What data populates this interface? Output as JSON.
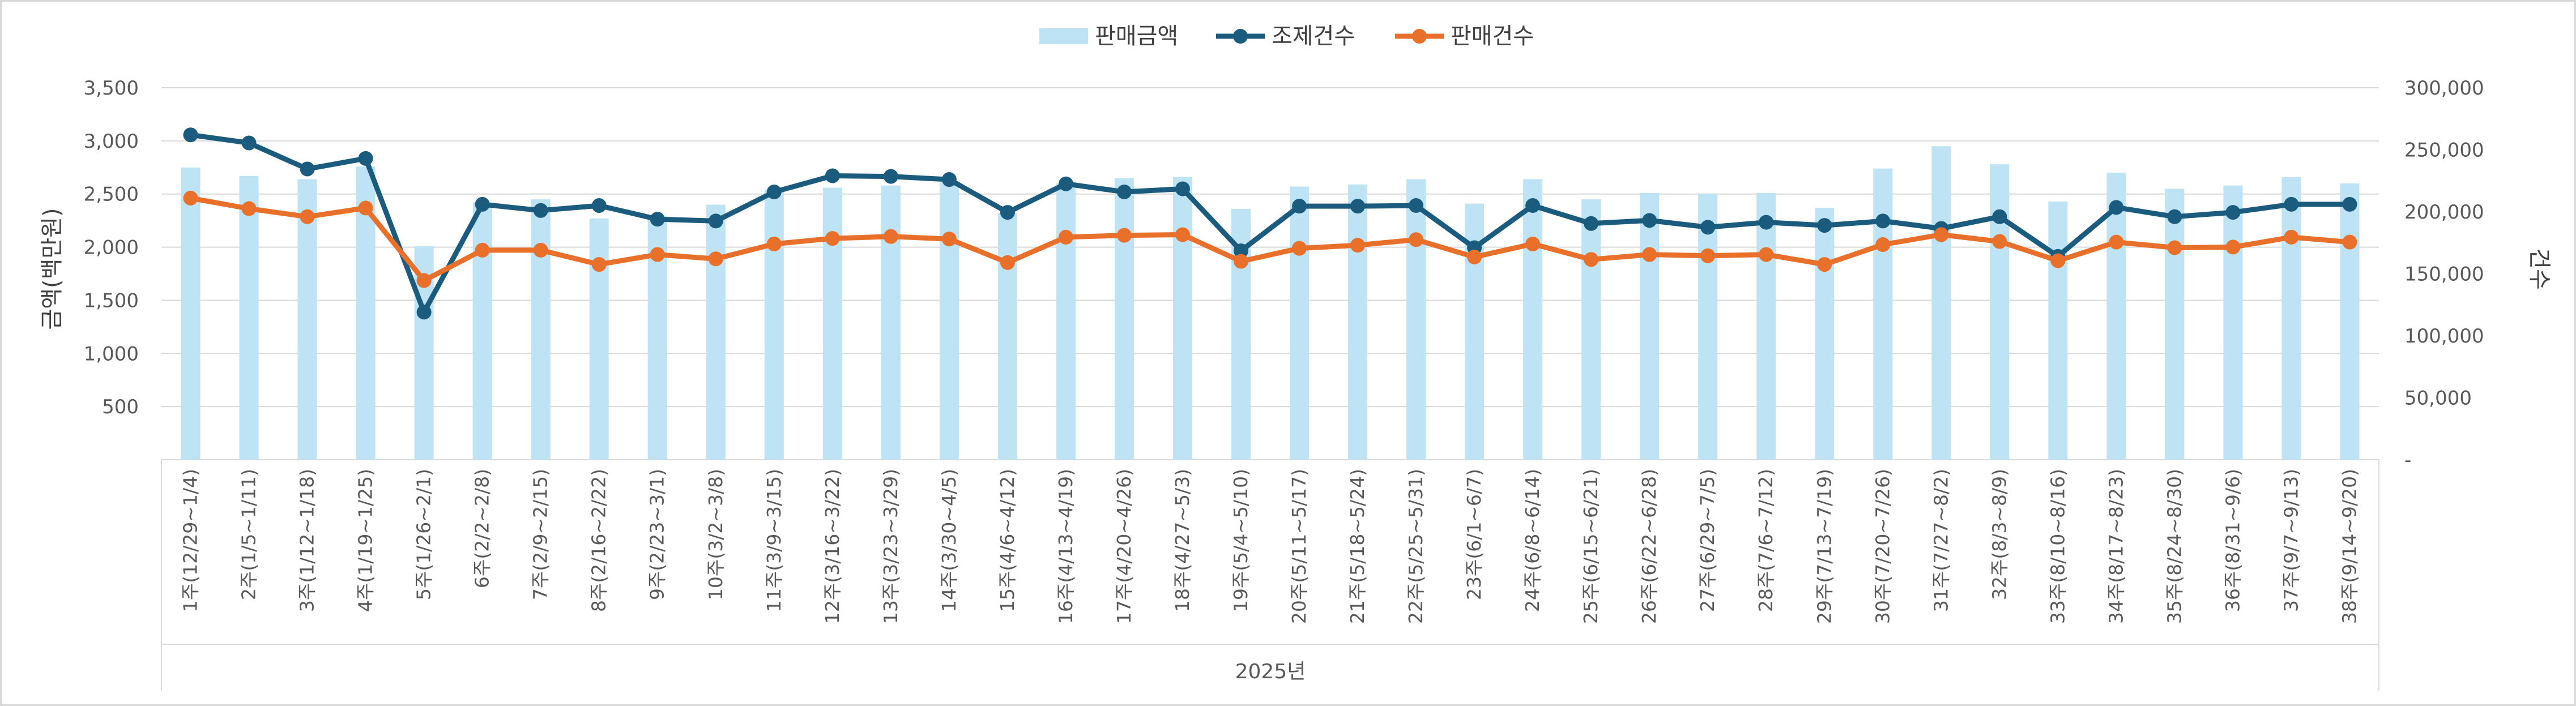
{
  "chart_data": {
    "type": "bar+line",
    "title": "",
    "legend": [
      "판매금액",
      "조제건수",
      "판매건수"
    ],
    "legend_position": "top",
    "ylabel_left": "금액(백만원)",
    "ylabel_right": "건수",
    "ylim_left": [
      0,
      3500
    ],
    "ylim_right": [
      0,
      300000
    ],
    "yticks_left": [
      "500",
      "1,000",
      "1,500",
      "2,000",
      "2,500",
      "3,000",
      "3,500"
    ],
    "yticks_right": [
      "-",
      "50,000",
      "100,000",
      "150,000",
      "200,000",
      "250,000",
      "300,000"
    ],
    "year_label": "2025년",
    "categories": [
      "1주(12/29~1/4)",
      "2주(1/5~1/11)",
      "3주(1/12~1/18)",
      "4주(1/19~1/25)",
      "5주(1/26~2/1)",
      "6주(2/2~2/8)",
      "7주(2/9~2/15)",
      "8주(2/16~2/22)",
      "9주(2/23~3/1)",
      "10주(3/2~3/8)",
      "11주(3/9~3/15)",
      "12주(3/16~3/22)",
      "13주(3/23~3/29)",
      "14주(3/30~4/5)",
      "15주(4/6~4/12)",
      "16주(4/13~4/19)",
      "17주(4/20~4/26)",
      "18주(4/27~5/3)",
      "19주(5/4~5/10)",
      "20주(5/11~5/17)",
      "21주(5/18~5/24)",
      "22주(5/25~5/31)",
      "23주(6/1~6/7)",
      "24주(6/8~6/14)",
      "25주(6/15~6/21)",
      "26주(6/22~6/28)",
      "27주(6/29~7/5)",
      "28주(7/6~7/12)",
      "29주(7/13~7/19)",
      "30주(7/20~7/26)",
      "31주(7/27~8/2)",
      "32주(8/3~8/9)",
      "33주(8/10~8/16)",
      "34주(8/17~8/23)",
      "35주(8/24~8/30)",
      "36주(8/31~9/6)",
      "37주(9/7~9/13)",
      "38주(9/14~9/20)"
    ],
    "series": [
      {
        "name": "판매금액",
        "type": "bar",
        "axis": "left",
        "color": "#BDE3F5",
        "values": [
          2750,
          2670,
          2640,
          2760,
          2010,
          2420,
          2450,
          2270,
          2290,
          2400,
          2540,
          2560,
          2580,
          2610,
          2320,
          2600,
          2650,
          2660,
          2360,
          2570,
          2590,
          2640,
          2410,
          2640,
          2450,
          2510,
          2500,
          2510,
          2370,
          2740,
          2950,
          2780,
          2430,
          2700,
          2550,
          2580,
          2660,
          2600
        ]
      },
      {
        "name": "조제건수",
        "type": "line",
        "axis": "right",
        "color": "#1B5C7E",
        "values": [
          262000,
          255500,
          234500,
          243000,
          119000,
          206000,
          201000,
          205000,
          194000,
          192500,
          216000,
          229000,
          228500,
          226000,
          199500,
          222500,
          216000,
          218500,
          168500,
          204500,
          204500,
          205000,
          171000,
          205000,
          190500,
          193000,
          187500,
          191500,
          189000,
          192500,
          186500,
          196000,
          164000,
          203500,
          196000,
          199500,
          206000,
          206000
        ]
      },
      {
        "name": "판매건수",
        "type": "line",
        "axis": "right",
        "color": "#E8702A",
        "values": [
          211000,
          202500,
          196000,
          203000,
          144500,
          169000,
          169000,
          157500,
          165500,
          162000,
          174000,
          178500,
          180000,
          178000,
          159000,
          179500,
          181000,
          181500,
          160000,
          170500,
          173000,
          177500,
          163500,
          174000,
          161500,
          165500,
          164500,
          165500,
          157500,
          173500,
          181500,
          176000,
          160500,
          175500,
          171000,
          171500,
          179500,
          175500
        ]
      }
    ]
  }
}
